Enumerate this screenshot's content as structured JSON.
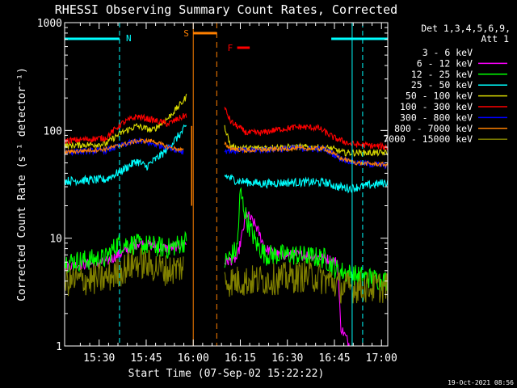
{
  "chart_data": {
    "type": "line",
    "title": "RHESSI Observing Summary Count Rates, Corrected",
    "xlabel": "Start Time (07-Sep-02 15:22:22)",
    "ylabel": "Corrected Count Rate (s⁻¹ detector⁻¹)",
    "yscale": "log",
    "ylim": [
      1,
      1000
    ],
    "xlim_min": [
      -3,
      100
    ],
    "x_ticks": [
      {
        "t": 8,
        "label": "15:30"
      },
      {
        "t": 23,
        "label": "15:45"
      },
      {
        "t": 38,
        "label": "16:00"
      },
      {
        "t": 53,
        "label": "16:15"
      },
      {
        "t": 68,
        "label": "16:30"
      },
      {
        "t": 83,
        "label": "16:45"
      },
      {
        "t": 98,
        "label": "17:00"
      }
    ],
    "y_ticks": [
      {
        "v": 1,
        "label": "1"
      },
      {
        "v": 10,
        "label": "10"
      },
      {
        "v": 100,
        "label": "100"
      },
      {
        "v": 1000,
        "label": "1000"
      }
    ],
    "detectors_label": "Det 1,3,4,5,6,9,",
    "attenuator_label": "Att 1",
    "timestamp": "19-Oct-2021 08:56",
    "series": [
      {
        "name": "3 - 6 keV",
        "color": "#000000",
        "noise": 0.7,
        "seg1": [
          [
            11,
            1
          ],
          [
            34,
            1
          ]
        ],
        "seg2": [
          [
            40,
            1
          ],
          [
            88,
            1
          ]
        ]
      },
      {
        "name": "6 - 12 keV",
        "color": "#ff00ff",
        "noise": 0.05,
        "seg1": [
          [
            -3,
            5.5
          ],
          [
            10,
            6
          ],
          [
            16,
            7.5
          ],
          [
            20,
            9
          ],
          [
            25,
            8.5
          ],
          [
            30,
            8
          ],
          [
            36,
            9
          ]
        ],
        "seg2": [
          [
            48,
            6
          ],
          [
            52,
            6.5
          ],
          [
            55,
            17
          ],
          [
            58,
            13
          ],
          [
            61,
            8
          ],
          [
            65,
            7
          ],
          [
            70,
            7
          ],
          [
            75,
            7
          ],
          [
            80,
            6.5
          ],
          [
            84,
            6
          ],
          [
            85,
            1.5
          ],
          [
            88,
            1
          ]
        ]
      },
      {
        "name": "12 - 25 keV",
        "color": "#00ff00",
        "noise": 0.1,
        "seg1": [
          [
            -3,
            6
          ],
          [
            10,
            6.5
          ],
          [
            14,
            9
          ],
          [
            25,
            8.5
          ],
          [
            30,
            8
          ],
          [
            36,
            9.5
          ]
        ],
        "seg2": [
          [
            48,
            6
          ],
          [
            52,
            8
          ],
          [
            53,
            27
          ],
          [
            55,
            15
          ],
          [
            58,
            9
          ],
          [
            61,
            7
          ],
          [
            70,
            7
          ],
          [
            80,
            6.5
          ],
          [
            84,
            5
          ],
          [
            90,
            4.5
          ],
          [
            100,
            4
          ]
        ]
      },
      {
        "name": "25 - 50 keV",
        "color": "#00ffff",
        "noise": 0.04,
        "seg1": [
          [
            -3,
            34
          ],
          [
            10,
            35
          ],
          [
            15,
            42
          ],
          [
            20,
            52
          ],
          [
            23,
            46
          ],
          [
            28,
            60
          ],
          [
            32,
            80
          ],
          [
            36,
            110
          ]
        ],
        "seg2": [
          [
            48,
            38
          ],
          [
            52,
            34
          ],
          [
            60,
            32
          ],
          [
            70,
            33
          ],
          [
            80,
            33
          ],
          [
            84,
            30
          ],
          [
            88,
            29
          ],
          [
            100,
            33
          ]
        ]
      },
      {
        "name": "50 - 100 keV",
        "color": "#d8d800",
        "noise": 0.03,
        "seg1": [
          [
            -3,
            72
          ],
          [
            10,
            75
          ],
          [
            15,
            95
          ],
          [
            20,
            110
          ],
          [
            25,
            100
          ],
          [
            30,
            130
          ],
          [
            35,
            190
          ],
          [
            36,
            210
          ]
        ],
        "seg2": [
          [
            48,
            110
          ],
          [
            50,
            70
          ],
          [
            55,
            68
          ],
          [
            65,
            70
          ],
          [
            75,
            70
          ],
          [
            82,
            68
          ],
          [
            86,
            62
          ],
          [
            100,
            62
          ]
        ]
      },
      {
        "name": "100 - 300 keV",
        "color": "#ff0000",
        "noise": 0.03,
        "seg1": [
          [
            -3,
            80
          ],
          [
            10,
            85
          ],
          [
            15,
            115
          ],
          [
            20,
            135
          ],
          [
            25,
            125
          ],
          [
            30,
            115
          ],
          [
            36,
            140
          ]
        ],
        "seg2": [
          [
            48,
            160
          ],
          [
            50,
            120
          ],
          [
            55,
            95
          ],
          [
            60,
            95
          ],
          [
            65,
            102
          ],
          [
            72,
            108
          ],
          [
            78,
            105
          ],
          [
            83,
            85
          ],
          [
            88,
            75
          ],
          [
            100,
            70
          ]
        ]
      },
      {
        "name": "300 - 800 keV",
        "color": "#0000ff",
        "noise": 0.03,
        "seg1": [
          [
            -3,
            63
          ],
          [
            10,
            65
          ],
          [
            20,
            80
          ],
          [
            25,
            75
          ],
          [
            30,
            70
          ],
          [
            35,
            63
          ]
        ],
        "seg2": [
          [
            48,
            65
          ],
          [
            55,
            65
          ],
          [
            70,
            68
          ],
          [
            80,
            67
          ],
          [
            85,
            55
          ],
          [
            90,
            50
          ],
          [
            100,
            47
          ]
        ]
      },
      {
        "name": "800 - 7000 keV",
        "color": "#ff8000",
        "noise": 0.02,
        "seg1": [
          [
            -3,
            63
          ],
          [
            10,
            67
          ],
          [
            20,
            80
          ],
          [
            25,
            80
          ],
          [
            30,
            70
          ],
          [
            35,
            65
          ]
        ],
        "seg2": [
          [
            48,
            75
          ],
          [
            50,
            68
          ],
          [
            55,
            65
          ],
          [
            70,
            68
          ],
          [
            80,
            68
          ],
          [
            85,
            55
          ],
          [
            90,
            50
          ],
          [
            100,
            48
          ]
        ]
      },
      {
        "name": "7000 - 15000 keV",
        "color": "#808000",
        "noise": 0.15,
        "seg1": [
          [
            -3,
            4
          ],
          [
            10,
            4.2
          ],
          [
            15,
            5
          ],
          [
            20,
            6
          ],
          [
            25,
            5.5
          ],
          [
            30,
            5
          ],
          [
            35,
            5.5
          ]
        ],
        "seg2": [
          [
            48,
            4
          ],
          [
            55,
            4
          ],
          [
            65,
            4.2
          ],
          [
            75,
            4.5
          ],
          [
            82,
            4
          ],
          [
            85,
            3.5
          ],
          [
            90,
            3.5
          ],
          [
            100,
            3.5
          ]
        ]
      }
    ],
    "annotations": {
      "eclipse_lines_min": [
        14.5,
        92
      ],
      "night_label": "N",
      "saa_label": "S",
      "saa_start_min": 38,
      "saa_end_min": 45.5,
      "flare_label": "F",
      "flare_start_min": 52,
      "flare_end_min": 56,
      "sun_bar_left_min": [
        -3,
        14.5
      ],
      "sun_bar_right_min": [
        82,
        100
      ],
      "saa_spike": {
        "t_min": 37.5,
        "from": 20,
        "to": 110
      }
    }
  }
}
